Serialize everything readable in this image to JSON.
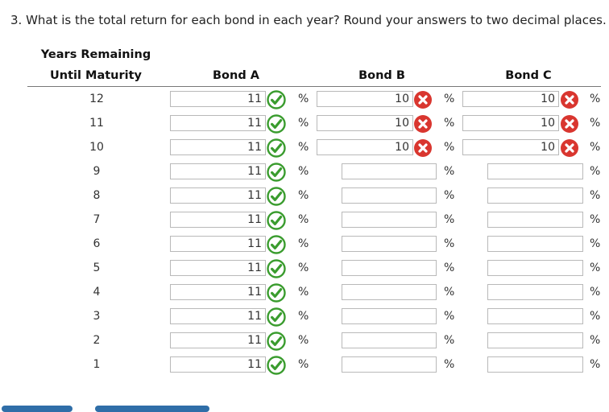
{
  "question": "3. What is the total return for each bond in each year? Round your answers to two decimal places.",
  "headers": {
    "years_line1": "Years Remaining",
    "years_line2": "Until Maturity",
    "bond_a": "Bond A",
    "bond_b": "Bond B",
    "bond_c": "Bond C"
  },
  "percent_symbol": "%",
  "icons": {
    "correct": "check-circle-green",
    "incorrect": "x-circle-red",
    "correct_color": "#3a9c2e",
    "incorrect_color": "#d9362f"
  },
  "rows": [
    {
      "year": "12",
      "a": "11",
      "a_status": "correct",
      "b": "10",
      "b_status": "incorrect",
      "c": "10",
      "c_status": "incorrect"
    },
    {
      "year": "11",
      "a": "11",
      "a_status": "correct",
      "b": "10",
      "b_status": "incorrect",
      "c": "10",
      "c_status": "incorrect"
    },
    {
      "year": "10",
      "a": "11",
      "a_status": "correct",
      "b": "10",
      "b_status": "incorrect",
      "c": "10",
      "c_status": "incorrect"
    },
    {
      "year": "9",
      "a": "11",
      "a_status": "correct",
      "b": "",
      "b_status": "",
      "c": "",
      "c_status": ""
    },
    {
      "year": "8",
      "a": "11",
      "a_status": "correct",
      "b": "",
      "b_status": "",
      "c": "",
      "c_status": ""
    },
    {
      "year": "7",
      "a": "11",
      "a_status": "correct",
      "b": "",
      "b_status": "",
      "c": "",
      "c_status": ""
    },
    {
      "year": "6",
      "a": "11",
      "a_status": "correct",
      "b": "",
      "b_status": "",
      "c": "",
      "c_status": ""
    },
    {
      "year": "5",
      "a": "11",
      "a_status": "correct",
      "b": "",
      "b_status": "",
      "c": "",
      "c_status": ""
    },
    {
      "year": "4",
      "a": "11",
      "a_status": "correct",
      "b": "",
      "b_status": "",
      "c": "",
      "c_status": ""
    },
    {
      "year": "3",
      "a": "11",
      "a_status": "correct",
      "b": "",
      "b_status": "",
      "c": "",
      "c_status": ""
    },
    {
      "year": "2",
      "a": "11",
      "a_status": "correct",
      "b": "",
      "b_status": "",
      "c": "",
      "c_status": ""
    },
    {
      "year": "1",
      "a": "11",
      "a_status": "correct",
      "b": "",
      "b_status": "",
      "c": "",
      "c_status": ""
    }
  ]
}
